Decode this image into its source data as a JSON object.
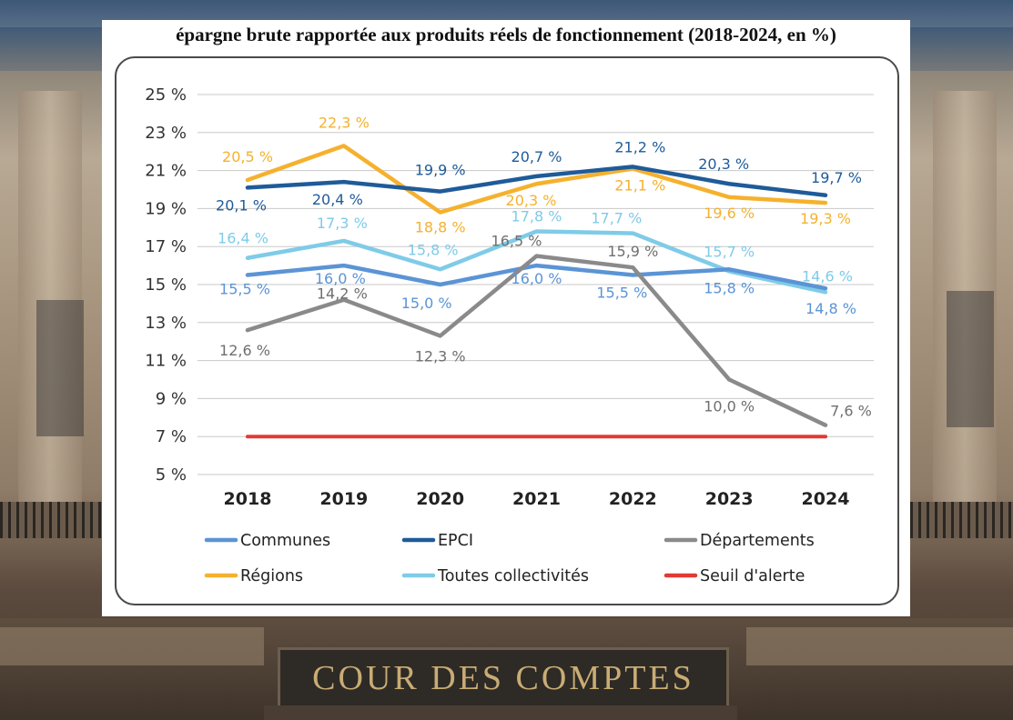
{
  "background": {
    "plaque_text": "COUR DES COMPTES"
  },
  "chart_data": {
    "type": "line",
    "title": "épargne brute rapportée aux produits réels  de fonctionnement (2018-2024, en %)",
    "x": [
      "2018",
      "2019",
      "2020",
      "2021",
      "2022",
      "2023",
      "2024"
    ],
    "ylim": [
      5,
      25
    ],
    "yticks": [
      5,
      7,
      9,
      11,
      13,
      15,
      17,
      19,
      21,
      23,
      25
    ],
    "ytick_labels": [
      "5 %",
      "7 %",
      "9 %",
      "11 %",
      "13 %",
      "15 %",
      "17 %",
      "19 %",
      "21 %",
      "23 %",
      "25 %"
    ],
    "grid": true,
    "legend_position": "bottom",
    "series": [
      {
        "name": "Régions",
        "color": "#f5b12e",
        "values": [
          20.5,
          22.3,
          18.8,
          20.3,
          21.1,
          19.6,
          19.3
        ],
        "labels": [
          "20,5 %",
          "22,3 %",
          "18,8 %",
          "20,3 %",
          "21,1 %",
          "19,6 %",
          "19,3 %"
        ]
      },
      {
        "name": "EPCI",
        "color": "#1f5b99",
        "values": [
          20.1,
          20.4,
          19.9,
          20.7,
          21.2,
          20.3,
          19.7
        ],
        "labels": [
          "20,1 %",
          "20,4 %",
          "19,9 %",
          "20,7 %",
          "21,2 %",
          "20,3 %",
          "19,7 %"
        ]
      },
      {
        "name": "Toutes collectivités",
        "color": "#7fcbe8",
        "values": [
          16.4,
          17.3,
          15.8,
          17.8,
          17.7,
          15.7,
          14.6
        ],
        "labels": [
          "16,4 %",
          "17,3  %",
          "15,8 %",
          "17,8 %",
          "17,7 %",
          "15,7 %",
          "14,6 %"
        ]
      },
      {
        "name": "Communes",
        "color": "#5b94d6",
        "values": [
          15.5,
          16.0,
          15.0,
          16.0,
          15.5,
          15.8,
          14.8
        ],
        "labels": [
          "15,5 %",
          "16,0 %",
          "15,0 %",
          "16,0 %",
          "15,5 %",
          "15,8 %",
          "14,8 %"
        ]
      },
      {
        "name": "Départements",
        "color": "#8a8a8a",
        "values": [
          12.6,
          14.2,
          12.3,
          16.5,
          15.9,
          10.0,
          7.6
        ],
        "labels": [
          "12,6 %",
          "14,2 %",
          "12,3 %",
          "16,5 %",
          "15,9 %",
          "10,0 %",
          "7,6 %"
        ]
      },
      {
        "name": "Seuil d'alerte",
        "color": "#e23a33",
        "values": [
          7,
          7,
          7,
          7,
          7,
          7,
          7
        ],
        "labels": []
      }
    ],
    "legend": [
      "Communes",
      "EPCI",
      "Départements",
      "Régions",
      "Toutes collectivités",
      "Seuil d'alerte"
    ]
  }
}
